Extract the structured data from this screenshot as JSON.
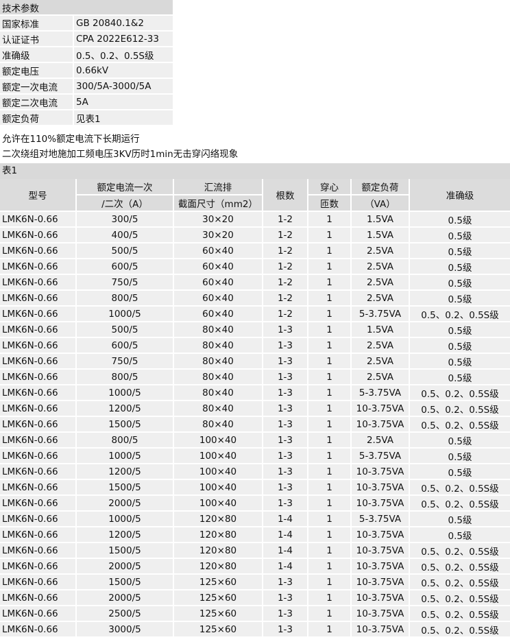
{
  "spec": {
    "title": "技术参数",
    "rows": [
      [
        "国家标准",
        "GB 20840.1&2"
      ],
      [
        "认证证书",
        "CPA 2022E612-33"
      ],
      [
        "准确级",
        "0.5、0.2、0.5S级"
      ],
      [
        "额定电压",
        "0.66kV"
      ],
      [
        "额定一次电流",
        "300/5A-3000/5A"
      ],
      [
        "额定二次电流",
        "5A"
      ],
      [
        "额定负荷",
        "见表1"
      ]
    ]
  },
  "notes": [
    "允许在110%额定电流下长期运行",
    "二次绕组对地施加工频电压3KV历时1min无击穿闪络现象"
  ],
  "table1": {
    "title": "表1",
    "headers": {
      "model": "型号",
      "current1": "额定电流一次",
      "current2": "/二次（A）",
      "busbar": "汇流排",
      "busbar_sub": "截面尺寸（mm2）",
      "count": "根数",
      "turns1": "穿心",
      "turns2": "匝数",
      "load1": "额定负荷",
      "load2": "（VA）",
      "accuracy": "准确级"
    },
    "rows": [
      [
        "LMK6N-0.66",
        "300/5",
        "30×20",
        "1-2",
        "1",
        "1.5VA",
        "0.5级"
      ],
      [
        "LMK6N-0.66",
        "400/5",
        "30×20",
        "1-2",
        "1",
        "1.5VA",
        "0.5级"
      ],
      [
        "LMK6N-0.66",
        "500/5",
        "60×40",
        "1-2",
        "1",
        "2.5VA",
        "0.5级"
      ],
      [
        "LMK6N-0.66",
        "600/5",
        "60×40",
        "1-2",
        "1",
        "2.5VA",
        "0.5级"
      ],
      [
        "LMK6N-0.66",
        "750/5",
        "60×40",
        "1-2",
        "1",
        "2.5VA",
        "0.5级"
      ],
      [
        "LMK6N-0.66",
        "800/5",
        "60×40",
        "1-2",
        "1",
        "2.5VA",
        "0.5级"
      ],
      [
        "LMK6N-0.66",
        "1000/5",
        "60×40",
        "1-2",
        "1",
        "5-3.75VA",
        "0.5、0.2、0.5S级"
      ],
      [
        "LMK6N-0.66",
        "500/5",
        "80×40",
        "1-3",
        "1",
        "1.5VA",
        "0.5级"
      ],
      [
        "LMK6N-0.66",
        "600/5",
        "80×40",
        "1-3",
        "1",
        "2.5VA",
        "0.5级"
      ],
      [
        "LMK6N-0.66",
        "750/5",
        "80×40",
        "1-3",
        "1",
        "2.5VA",
        "0.5级"
      ],
      [
        "LMK6N-0.66",
        "800/5",
        "80×40",
        "1-3",
        "1",
        "2.5VA",
        "0.5级"
      ],
      [
        "LMK6N-0.66",
        "1000/5",
        "80×40",
        "1-3",
        "1",
        "5-3.75VA",
        "0.5、0.2、0.5S级"
      ],
      [
        "LMK6N-0.66",
        "1200/5",
        "80×40",
        "1-3",
        "1",
        "10-3.75VA",
        "0.5、0.2、0.5S级"
      ],
      [
        "LMK6N-0.66",
        "1500/5",
        "80×40",
        "1-3",
        "1",
        "10-3.75VA",
        "0.5、0.2、0.5S级"
      ],
      [
        "LMK6N-0.66",
        "800/5",
        "100×40",
        "1-3",
        "1",
        "2.5VA",
        "0.5级"
      ],
      [
        "LMK6N-0.66",
        "1000/5",
        "100×40",
        "1-3",
        "1",
        "5-3.75VA",
        "0.5级"
      ],
      [
        "LMK6N-0.66",
        "1200/5",
        "100×40",
        "1-3",
        "1",
        "10-3.75VA",
        "0.5级"
      ],
      [
        "LMK6N-0.66",
        "1500/5",
        "100×40",
        "1-3",
        "1",
        "10-3.75VA",
        "0.5、0.2、0.5S级"
      ],
      [
        "LMK6N-0.66",
        "2000/5",
        "100×40",
        "1-3",
        "1",
        "10-3.75VA",
        "0.5、0.2、0.5S级"
      ],
      [
        "LMK6N-0.66",
        "1000/5",
        "120×80",
        "1-4",
        "1",
        "5-3.75VA",
        "0.5级"
      ],
      [
        "LMK6N-0.66",
        "1200/5",
        "120×80",
        "1-4",
        "1",
        "10-3.75VA",
        "0.5级"
      ],
      [
        "LMK6N-0.66",
        "1500/5",
        "120×80",
        "1-4",
        "1",
        "10-3.75VA",
        "0.5、0.2、0.5S级"
      ],
      [
        "LMK6N-0.66",
        "2000/5",
        "120×80",
        "1-4",
        "1",
        "10-3.75VA",
        "0.5、0.2、0.5S级"
      ],
      [
        "LMK6N-0.66",
        "1500/5",
        "125×60",
        "1-3",
        "1",
        "10-3.75VA",
        "0.5、0.2、0.5S级"
      ],
      [
        "LMK6N-0.66",
        "2000/5",
        "125×60",
        "1-3",
        "1",
        "10-3.75VA",
        "0.5、0.2、0.5S级"
      ],
      [
        "LMK6N-0.66",
        "2500/5",
        "125×60",
        "1-3",
        "1",
        "10-3.75VA",
        "0.5、0.2、0.5S级"
      ],
      [
        "LMK6N-0.66",
        "3000/5",
        "125×60",
        "1-3",
        "1",
        "10-3.75VA",
        "0.5、0.2、0.5S级"
      ]
    ]
  }
}
